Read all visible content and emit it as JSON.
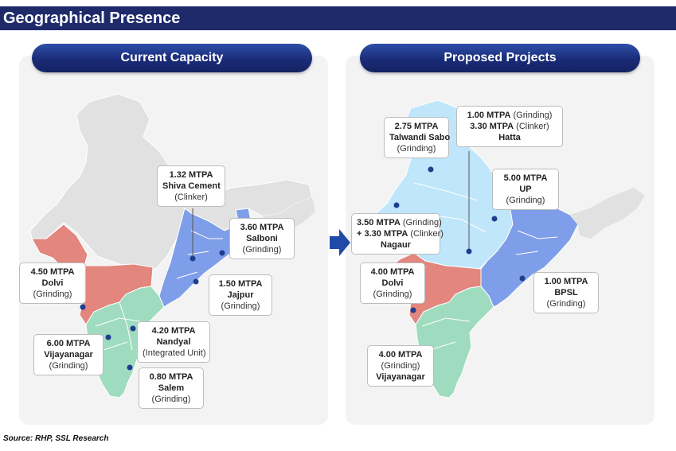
{
  "header": {
    "title": "Geographical Presence"
  },
  "panels": {
    "left": {
      "title": "Current Capacity"
    },
    "right": {
      "title": "Proposed Projects"
    }
  },
  "colors": {
    "grinding_region_west": "#e2867e",
    "south_region": "#9fdcbf",
    "east_region": "#7f9ee9",
    "north_region_proposed": "#bfe6fa",
    "background_land": "#e1e1e1",
    "marker": "#1f3e8f",
    "header_bar": "#1f2a6b"
  },
  "current": {
    "shiva": {
      "capacity": "1.32 MTPA",
      "name": "Shiva Cement",
      "type": "(Clinker)"
    },
    "salboni": {
      "capacity": "3.60 MTPA",
      "name": "Salboni",
      "type": "(Grinding)"
    },
    "jajpur": {
      "capacity": "1.50 MTPA",
      "name": "Jajpur",
      "type": "(Grinding)"
    },
    "dolvi": {
      "capacity": "4.50 MTPA",
      "name": "Dolvi",
      "type": "(Grinding)"
    },
    "nandyal": {
      "capacity": "4.20 MTPA",
      "name": "Nandyal",
      "type": "(Integrated Unit)"
    },
    "vijayanagar": {
      "capacity": "6.00 MTPA",
      "name": "Vijayanagar",
      "type": "(Grinding)"
    },
    "salem": {
      "capacity": "0.80 MTPA",
      "name": "Salem",
      "type": "(Grinding)"
    }
  },
  "proposed": {
    "talwandi": {
      "capacity": "2.75 MTPA",
      "name": "Talwandi Sabo",
      "type": "(Grinding)"
    },
    "hatta": {
      "line1_cap": "1.00 MTPA",
      "line1_type": "(Grinding)",
      "line2_cap": "3.30 MTPA",
      "line2_type": "(Clinker)",
      "name": "Hatta"
    },
    "up": {
      "capacity": "5.00 MTPA",
      "name": "UP",
      "type": "(Grinding)"
    },
    "nagaur": {
      "line1_cap": "3.50 MTPA",
      "line1_type": "(Grinding)",
      "line2_cap": "+ 3.30 MTPA",
      "line2_type": "(Clinker)",
      "name": "Nagaur"
    },
    "dolvi": {
      "capacity": "4.00 MTPA",
      "name": "Dolvi",
      "type": "(Grinding)"
    },
    "bpsl": {
      "capacity": "1.00 MTPA",
      "name": "BPSL",
      "type": "(Grinding)"
    },
    "vijayanagar": {
      "capacity": "4.00 MTPA",
      "type": "(Grinding)",
      "name": "Vijayanagar"
    }
  },
  "source": "Source: RHP, SSL Research"
}
